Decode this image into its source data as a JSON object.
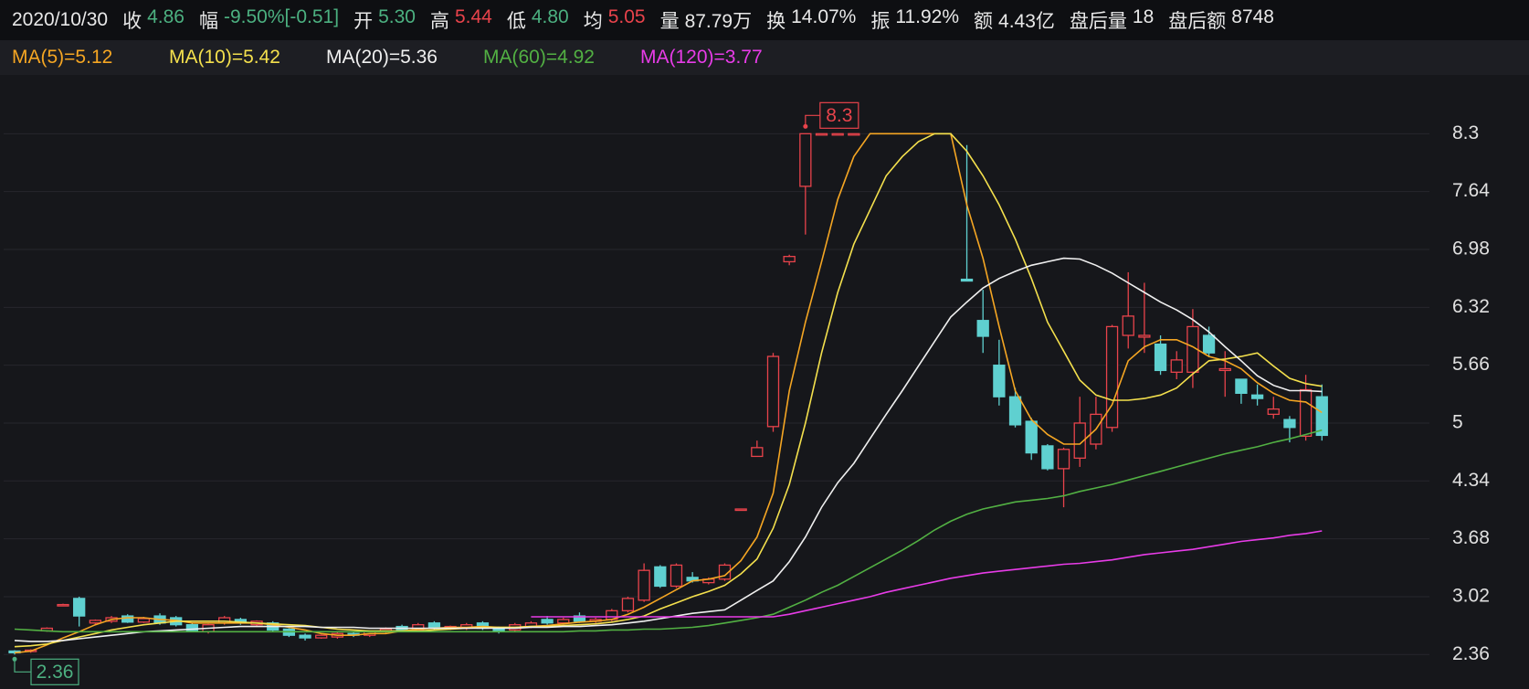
{
  "header": {
    "date": "2020/10/30",
    "items": [
      {
        "label": "收",
        "value": "4.86",
        "color": "#4cb080"
      },
      {
        "label": "幅",
        "value": "-9.50%[-0.51]",
        "color": "#4cb080"
      },
      {
        "label": "开",
        "value": "5.30",
        "color": "#4cb080"
      },
      {
        "label": "高",
        "value": "5.44",
        "color": "#e8434b"
      },
      {
        "label": "低",
        "value": "4.80",
        "color": "#4cb080"
      },
      {
        "label": "均",
        "value": "5.05",
        "color": "#e8434b"
      },
      {
        "label": "量",
        "value": "87.79万",
        "color": "#e8e8e8"
      },
      {
        "label": "换",
        "value": "14.07%",
        "color": "#e8e8e8"
      },
      {
        "label": "振",
        "value": "11.92%",
        "color": "#e8e8e8"
      },
      {
        "label": "额",
        "value": "4.43亿",
        "color": "#e8e8e8"
      },
      {
        "label": "盘后量",
        "value": "18",
        "color": "#e8e8e8"
      },
      {
        "label": "盘后额",
        "value": "8748",
        "color": "#e8e8e8"
      }
    ]
  },
  "chart_data": {
    "type": "candlestick",
    "ylim": [
      2.04,
      8.96
    ],
    "yticks": [
      8.3,
      7.64,
      6.98,
      6.32,
      5.66,
      5,
      4.34,
      3.68,
      3.02,
      2.36
    ],
    "grid": true,
    "up_color": "#e8434b",
    "down_color": "#5fd0d0",
    "max_label": "8.3",
    "min_label": "2.36",
    "candles": {
      "open": [
        2.4,
        2.4,
        2.63,
        2.93,
        3.0,
        2.72,
        2.74,
        2.8,
        2.73,
        2.8,
        2.78,
        2.7,
        2.62,
        2.72,
        2.76,
        2.7,
        2.72,
        2.65,
        2.58,
        2.55,
        2.56,
        2.6,
        2.58,
        2.62,
        2.68,
        2.64,
        2.72,
        2.66,
        2.66,
        2.72,
        2.66,
        2.64,
        2.68,
        2.76,
        2.72,
        2.8,
        2.74,
        2.76,
        2.86,
        2.98,
        3.36,
        3.14,
        3.24,
        3.18,
        3.22,
        4.02,
        4.62,
        4.96,
        6.84,
        7.7,
        8.3,
        8.3,
        8.3,
        null,
        null,
        null,
        null,
        null,
        null,
        6.64,
        6.17,
        5.66,
        5.3,
        5.02,
        4.74,
        4.48,
        4.6,
        4.76,
        4.95,
        6.0,
        5.98,
        5.9,
        5.58,
        5.58,
        6.0,
        5.6,
        5.5,
        5.32,
        5.1,
        5.04,
        4.85,
        5.3
      ],
      "high": [
        2.41,
        2.42,
        2.67,
        2.94,
        3.02,
        2.76,
        2.8,
        2.82,
        2.79,
        2.83,
        2.8,
        2.72,
        2.71,
        2.8,
        2.78,
        2.75,
        2.74,
        2.66,
        2.6,
        2.59,
        2.62,
        2.62,
        2.63,
        2.67,
        2.7,
        2.72,
        2.74,
        2.69,
        2.72,
        2.74,
        2.68,
        2.72,
        2.74,
        2.8,
        2.78,
        2.84,
        2.78,
        2.88,
        3.02,
        3.4,
        3.38,
        3.4,
        3.3,
        3.24,
        3.4,
        4.02,
        4.8,
        5.8,
        6.92,
        8.3,
        8.3,
        8.3,
        8.3,
        null,
        null,
        null,
        null,
        null,
        null,
        8.17,
        6.52,
        5.95,
        5.4,
        5.06,
        4.76,
        4.72,
        5.3,
        5.3,
        6.12,
        6.72,
        6.6,
        6.0,
        5.82,
        6.3,
        6.1,
        5.82,
        5.5,
        5.44,
        5.3,
        5.08,
        5.55,
        5.44
      ],
      "low": [
        2.36,
        2.38,
        2.62,
        2.92,
        2.68,
        2.7,
        2.72,
        2.72,
        2.72,
        2.7,
        2.68,
        2.62,
        2.6,
        2.7,
        2.7,
        2.68,
        2.62,
        2.56,
        2.52,
        2.54,
        2.54,
        2.56,
        2.56,
        2.6,
        2.62,
        2.62,
        2.64,
        2.64,
        2.64,
        2.64,
        2.6,
        2.62,
        2.66,
        2.7,
        2.7,
        2.72,
        2.72,
        2.74,
        2.84,
        2.96,
        3.12,
        3.12,
        3.18,
        3.16,
        3.2,
        4.02,
        4.62,
        4.9,
        6.8,
        7.15,
        8.3,
        8.3,
        8.3,
        null,
        null,
        null,
        null,
        null,
        null,
        6.62,
        5.8,
        5.2,
        4.95,
        4.58,
        4.46,
        4.04,
        4.5,
        4.7,
        4.9,
        5.85,
        5.8,
        5.55,
        5.5,
        5.4,
        5.75,
        5.3,
        5.22,
        5.2,
        5.05,
        4.78,
        4.8,
        4.8
      ],
      "close": [
        2.38,
        2.41,
        2.66,
        2.93,
        2.8,
        2.75,
        2.78,
        2.73,
        2.77,
        2.72,
        2.7,
        2.63,
        2.7,
        2.78,
        2.72,
        2.74,
        2.64,
        2.58,
        2.55,
        2.58,
        2.6,
        2.58,
        2.62,
        2.65,
        2.64,
        2.7,
        2.66,
        2.68,
        2.7,
        2.66,
        2.62,
        2.7,
        2.72,
        2.72,
        2.76,
        2.74,
        2.76,
        2.86,
        3.0,
        3.32,
        3.14,
        3.38,
        3.2,
        3.22,
        3.38,
        4.02,
        4.72,
        5.76,
        6.9,
        8.3,
        8.3,
        8.3,
        8.3,
        null,
        null,
        null,
        null,
        null,
        null,
        6.62,
        5.99,
        5.3,
        4.98,
        4.66,
        4.48,
        4.7,
        5.0,
        5.1,
        6.1,
        6.22,
        6.0,
        5.6,
        5.72,
        6.1,
        5.8,
        5.62,
        5.34,
        5.28,
        5.16,
        4.95,
        5.38,
        4.86
      ]
    },
    "series": [
      {
        "name": "MA(5)=5.12",
        "color": "#f5a623",
        "values": [
          2.38,
          2.4,
          2.47,
          2.55,
          2.62,
          2.7,
          2.76,
          2.78,
          2.78,
          2.76,
          2.75,
          2.72,
          2.72,
          2.72,
          2.72,
          2.72,
          2.7,
          2.67,
          2.64,
          2.6,
          2.58,
          2.58,
          2.6,
          2.6,
          2.63,
          2.65,
          2.66,
          2.67,
          2.67,
          2.68,
          2.67,
          2.67,
          2.68,
          2.69,
          2.71,
          2.73,
          2.74,
          2.76,
          2.82,
          2.9,
          3.0,
          3.1,
          3.2,
          3.22,
          3.26,
          3.43,
          3.7,
          4.2,
          5.37,
          6.15,
          6.84,
          7.55,
          8.04,
          8.3,
          8.3,
          8.3,
          8.3,
          8.3,
          8.3,
          7.49,
          6.88,
          6.1,
          5.37,
          5.04,
          4.87,
          4.76,
          4.76,
          4.93,
          5.21,
          5.71,
          5.87,
          5.95,
          5.95,
          5.87,
          5.76,
          5.71,
          5.62,
          5.46,
          5.34,
          5.26,
          5.24,
          5.12
        ]
      },
      {
        "name": "MA(10)=5.42",
        "color": "#f4e04d",
        "values": [
          2.45,
          2.46,
          2.48,
          2.52,
          2.56,
          2.6,
          2.64,
          2.67,
          2.7,
          2.72,
          2.74,
          2.74,
          2.74,
          2.74,
          2.73,
          2.72,
          2.71,
          2.7,
          2.69,
          2.67,
          2.65,
          2.64,
          2.63,
          2.63,
          2.63,
          2.63,
          2.64,
          2.65,
          2.66,
          2.67,
          2.67,
          2.67,
          2.68,
          2.68,
          2.69,
          2.7,
          2.71,
          2.73,
          2.76,
          2.8,
          2.88,
          2.95,
          3.02,
          3.08,
          3.15,
          3.28,
          3.45,
          3.8,
          4.3,
          5.0,
          5.8,
          6.49,
          7.04,
          7.43,
          7.82,
          8.04,
          8.21,
          8.3,
          8.3,
          8.1,
          7.82,
          7.49,
          7.1,
          6.65,
          6.15,
          5.82,
          5.49,
          5.32,
          5.26,
          5.26,
          5.28,
          5.32,
          5.4,
          5.56,
          5.71,
          5.73,
          5.76,
          5.8,
          5.65,
          5.51,
          5.45,
          5.42
        ]
      },
      {
        "name": "MA(20)=5.36",
        "color": "#f0f0f0",
        "values": [
          2.52,
          2.51,
          2.51,
          2.52,
          2.54,
          2.56,
          2.58,
          2.6,
          2.62,
          2.63,
          2.64,
          2.65,
          2.66,
          2.67,
          2.68,
          2.68,
          2.68,
          2.68,
          2.68,
          2.67,
          2.67,
          2.67,
          2.66,
          2.66,
          2.66,
          2.66,
          2.66,
          2.66,
          2.66,
          2.66,
          2.66,
          2.66,
          2.67,
          2.67,
          2.68,
          2.68,
          2.69,
          2.7,
          2.72,
          2.74,
          2.77,
          2.8,
          2.83,
          2.85,
          2.87,
          2.98,
          3.09,
          3.2,
          3.42,
          3.7,
          4.04,
          4.32,
          4.54,
          4.82,
          5.1,
          5.37,
          5.65,
          5.93,
          6.21,
          6.38,
          6.54,
          6.65,
          6.73,
          6.8,
          6.84,
          6.88,
          6.87,
          6.8,
          6.71,
          6.6,
          6.49,
          6.38,
          6.29,
          6.18,
          6.04,
          5.87,
          5.71,
          5.54,
          5.43,
          5.37,
          5.37,
          5.36
        ]
      },
      {
        "name": "MA(60)=4.92",
        "color": "#52b043",
        "values": [
          2.65,
          2.64,
          2.63,
          2.62,
          2.62,
          2.62,
          2.62,
          2.62,
          2.62,
          2.62,
          2.62,
          2.62,
          2.62,
          2.62,
          2.62,
          2.62,
          2.62,
          2.62,
          2.62,
          2.62,
          2.62,
          2.62,
          2.62,
          2.62,
          2.62,
          2.62,
          2.62,
          2.62,
          2.62,
          2.62,
          2.62,
          2.62,
          2.62,
          2.62,
          2.62,
          2.63,
          2.63,
          2.64,
          2.64,
          2.65,
          2.65,
          2.66,
          2.67,
          2.69,
          2.72,
          2.75,
          2.78,
          2.82,
          2.9,
          2.98,
          3.07,
          3.15,
          3.25,
          3.35,
          3.45,
          3.55,
          3.66,
          3.78,
          3.88,
          3.96,
          4.02,
          4.06,
          4.1,
          4.12,
          4.14,
          4.17,
          4.22,
          4.26,
          4.3,
          4.35,
          4.4,
          4.45,
          4.5,
          4.55,
          4.6,
          4.65,
          4.69,
          4.73,
          4.78,
          4.82,
          4.87,
          4.92
        ]
      },
      {
        "name": "MA(120)=3.77",
        "color": "#e83ce8",
        "values": [
          null,
          null,
          null,
          null,
          null,
          null,
          null,
          null,
          null,
          null,
          null,
          null,
          null,
          null,
          null,
          null,
          null,
          null,
          null,
          null,
          null,
          null,
          null,
          null,
          null,
          null,
          null,
          null,
          null,
          null,
          null,
          null,
          2.79,
          2.79,
          2.79,
          2.79,
          2.79,
          2.79,
          2.79,
          2.79,
          2.79,
          2.79,
          2.79,
          2.79,
          2.79,
          2.79,
          2.79,
          2.79,
          2.82,
          2.86,
          2.9,
          2.94,
          2.98,
          3.02,
          3.07,
          3.11,
          3.15,
          3.19,
          3.23,
          3.26,
          3.29,
          3.31,
          3.33,
          3.35,
          3.37,
          3.39,
          3.4,
          3.42,
          3.44,
          3.47,
          3.5,
          3.52,
          3.54,
          3.56,
          3.59,
          3.62,
          3.65,
          3.67,
          3.69,
          3.72,
          3.74,
          3.77
        ]
      }
    ]
  }
}
